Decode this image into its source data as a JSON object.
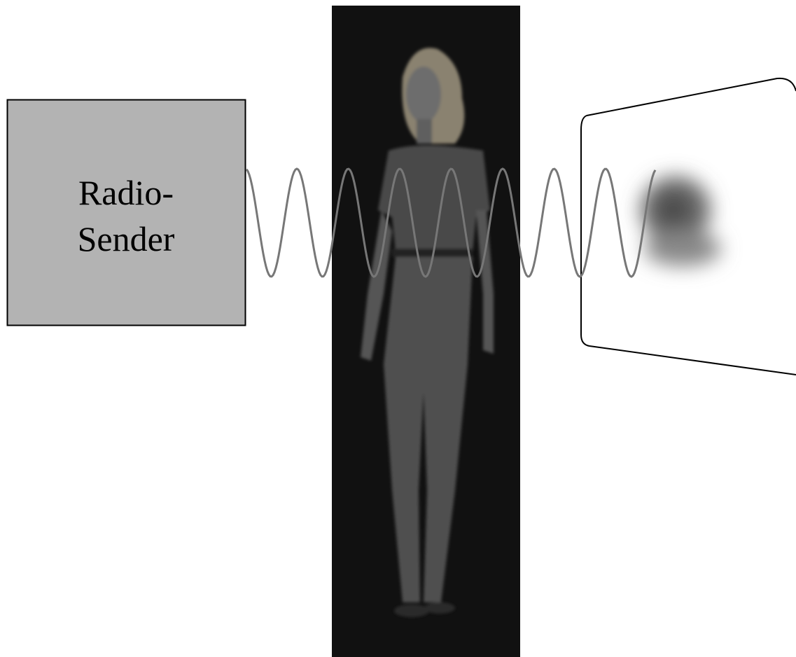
{
  "sender": {
    "label_lines": [
      "Radio-",
      "Sender"
    ]
  }
}
